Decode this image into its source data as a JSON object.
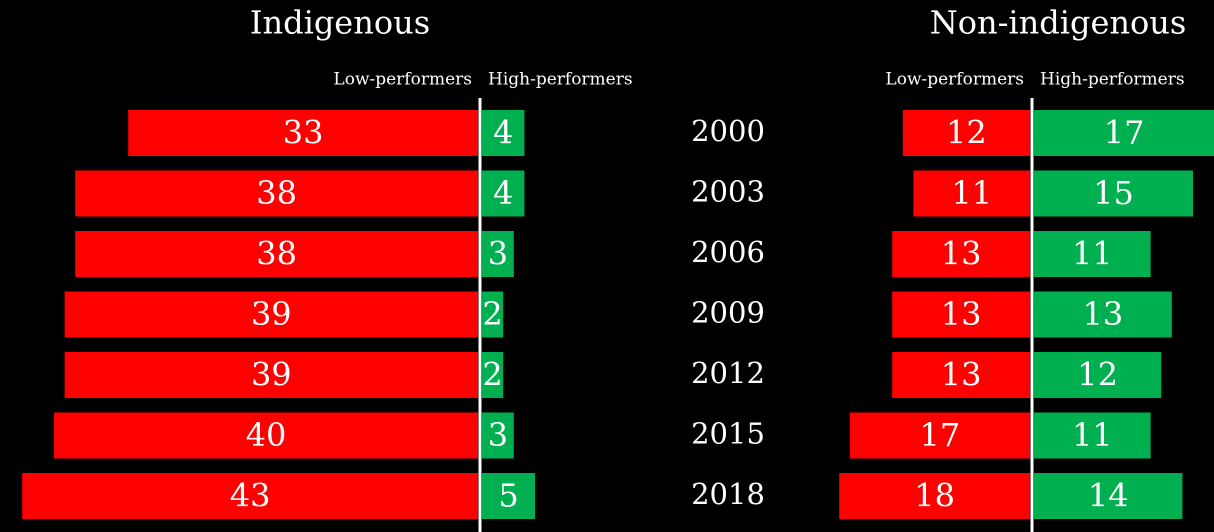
{
  "chart_data": {
    "type": "butterfly",
    "categories": [
      "2000",
      "2003",
      "2006",
      "2009",
      "2012",
      "2015",
      "2018"
    ],
    "panels": [
      {
        "title": "Indigenous",
        "series": [
          {
            "name": "Low-performers",
            "color": "#ff0000",
            "values": [
              33,
              38,
              38,
              39,
              39,
              40,
              43
            ]
          },
          {
            "name": "High-performers",
            "color": "#00b050",
            "values": [
              4,
              4,
              3,
              2,
              2,
              3,
              5
            ]
          }
        ]
      },
      {
        "title": "Non-indigenous",
        "series": [
          {
            "name": "Low-performers",
            "color": "#ff0000",
            "values": [
              12,
              11,
              13,
              13,
              13,
              17,
              18
            ]
          },
          {
            "name": "High-performers",
            "color": "#00b050",
            "values": [
              17,
              15,
              11,
              13,
              12,
              11,
              14
            ]
          }
        ]
      }
    ]
  }
}
